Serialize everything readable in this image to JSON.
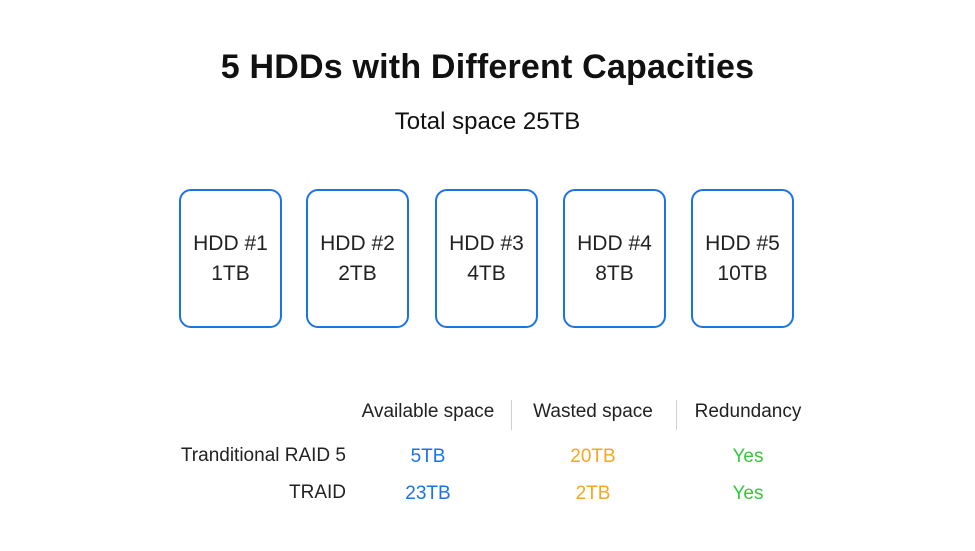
{
  "title": "5 HDDs with Different Capacities",
  "subtitle": "Total space 25TB",
  "colors": {
    "border": "#1a73e8",
    "available": "#1a73e8",
    "wasted": "#f5a623",
    "redundancy": "#3cc43c"
  },
  "hdds": [
    {
      "name": "HDD #1",
      "capacity": "1TB"
    },
    {
      "name": "HDD #2",
      "capacity": "2TB"
    },
    {
      "name": "HDD #3",
      "capacity": "4TB"
    },
    {
      "name": "HDD #4",
      "capacity": "8TB"
    },
    {
      "name": "HDD #5",
      "capacity": "10TB"
    }
  ],
  "table": {
    "headers": [
      "Available space",
      "Wasted space",
      "Redundancy"
    ],
    "rows": [
      {
        "label": "Tranditional RAID 5",
        "available": "5TB",
        "wasted": "20TB",
        "redundancy": "Yes"
      },
      {
        "label": "TRAID",
        "available": "23TB",
        "wasted": "2TB",
        "redundancy": "Yes"
      }
    ]
  }
}
